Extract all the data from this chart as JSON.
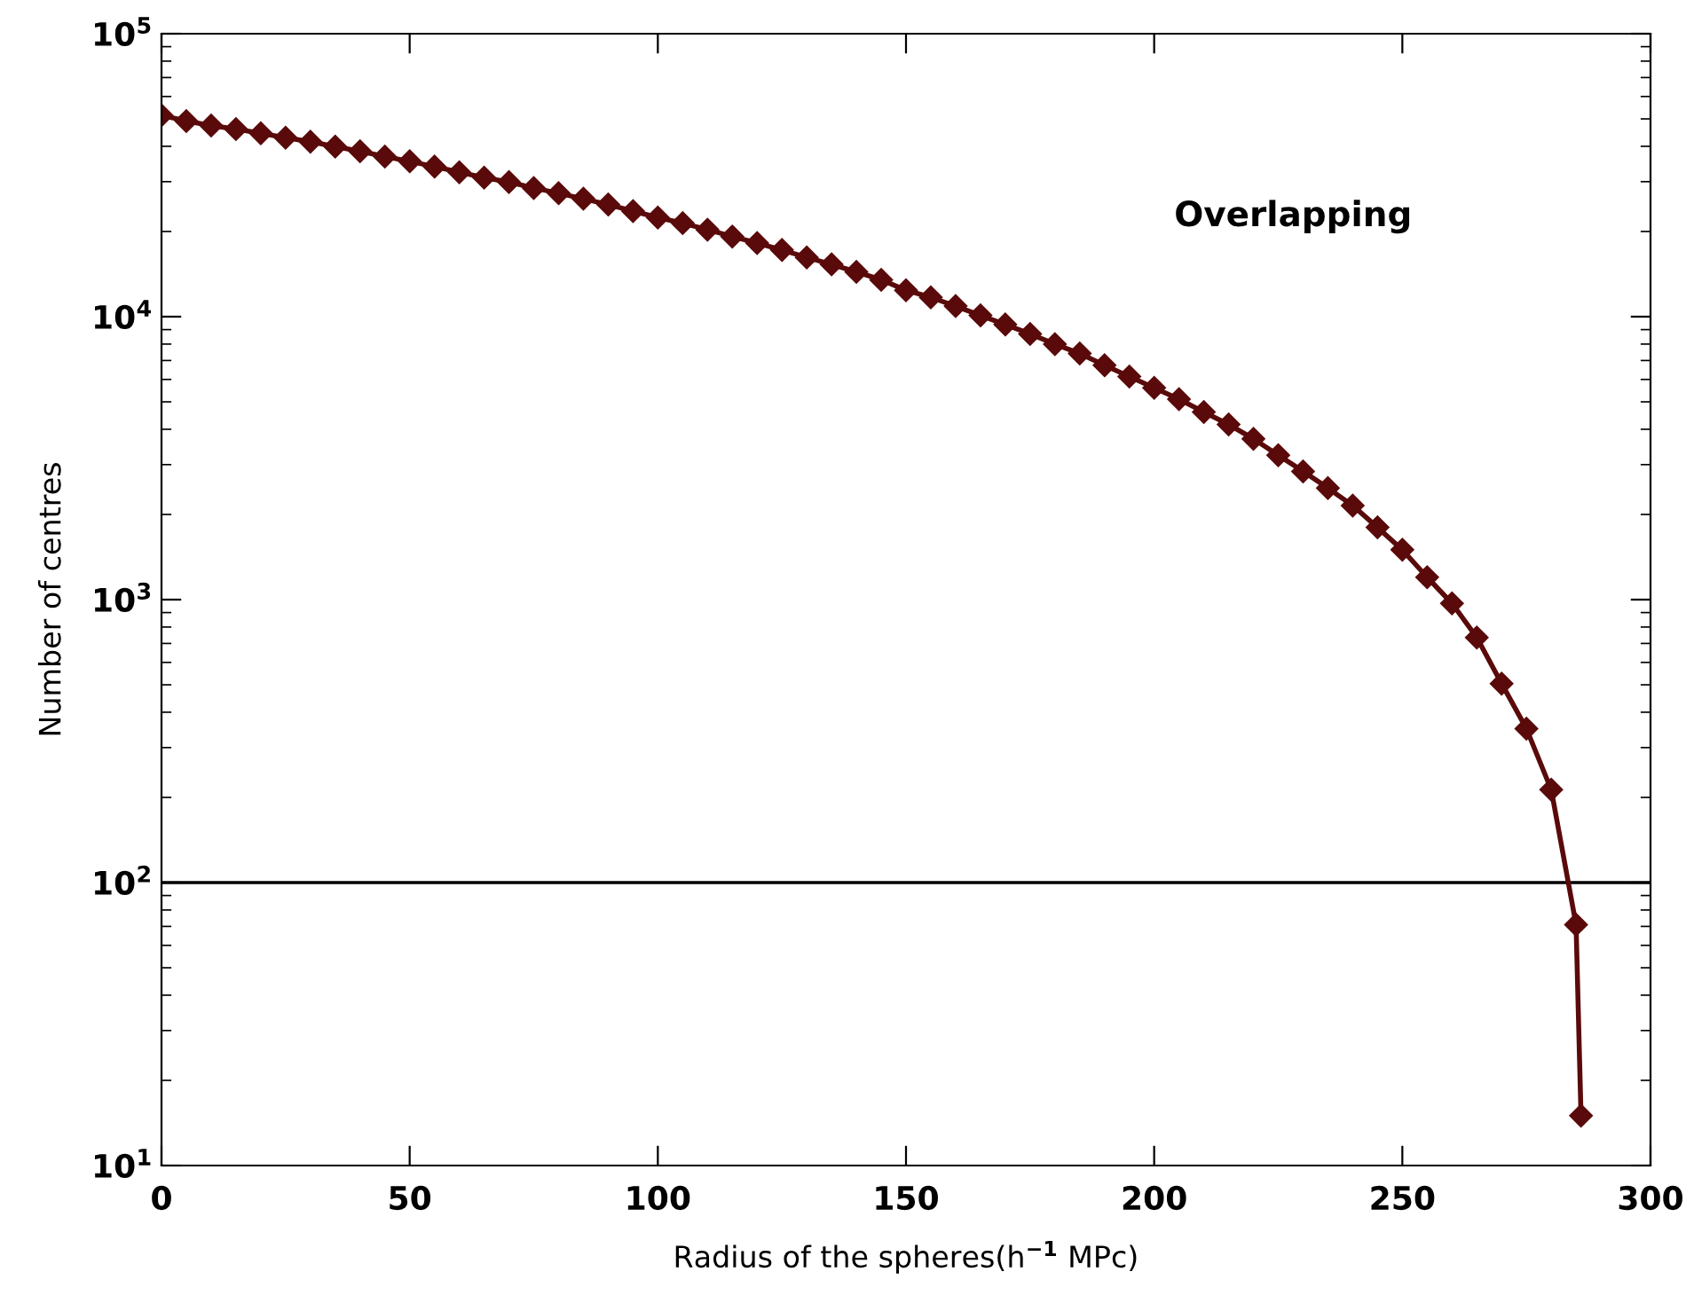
{
  "chart_data": {
    "type": "line",
    "xlabel": "Radius of the spheres(h$^{−1}$ MPc)",
    "ylabel": "Number of centres",
    "annotations": [
      "Overlapping"
    ],
    "log": "y",
    "marker": "diamond",
    "line_style": "solid",
    "grid": false,
    "legend": false,
    "xlim": [
      0,
      300
    ],
    "xticks": [
      0,
      50,
      100,
      150,
      200,
      250,
      300
    ],
    "ylim": [
      10,
      100000
    ],
    "yticks": [
      {
        "value": 10,
        "label": "10$^{1}$"
      },
      {
        "value": 100,
        "label": "10$^{2}$"
      },
      {
        "value": 1000,
        "label": "10$^{3}$"
      },
      {
        "value": 10000,
        "label": "10$^{4}$"
      },
      {
        "value": 100000,
        "label": "10$^{5}$"
      }
    ],
    "ref_lines": [
      {
        "axis": "y",
        "value": 100,
        "color": "#000000"
      }
    ],
    "series": [
      {
        "color": "#5a0a0a",
        "x": [
          0,
          5,
          10,
          15,
          20,
          25,
          30,
          35,
          40,
          45,
          50,
          55,
          60,
          65,
          70,
          75,
          80,
          85,
          90,
          95,
          100,
          105,
          110,
          115,
          120,
          125,
          130,
          135,
          140,
          145,
          150,
          155,
          160,
          165,
          170,
          175,
          180,
          185,
          190,
          195,
          200,
          205,
          210,
          215,
          220,
          225,
          230,
          235,
          240,
          245,
          250,
          255,
          260,
          265,
          270,
          275,
          280,
          285,
          286
        ],
        "values": [
          51500,
          49100,
          47400,
          46000,
          44500,
          42900,
          41500,
          39900,
          38400,
          36800,
          35400,
          33900,
          32400,
          31000,
          29900,
          28500,
          27300,
          26100,
          24900,
          23600,
          22400,
          21400,
          20300,
          19200,
          18200,
          17200,
          16200,
          15300,
          14400,
          13500,
          12400,
          11700,
          10900,
          10100,
          9380,
          8690,
          8000,
          7410,
          6730,
          6140,
          5600,
          5110,
          4600,
          4160,
          3700,
          3240,
          2840,
          2480,
          2150,
          1800,
          1500,
          1200,
          970,
          735,
          505,
          350,
          213,
          71,
          15
        ]
      }
    ]
  }
}
